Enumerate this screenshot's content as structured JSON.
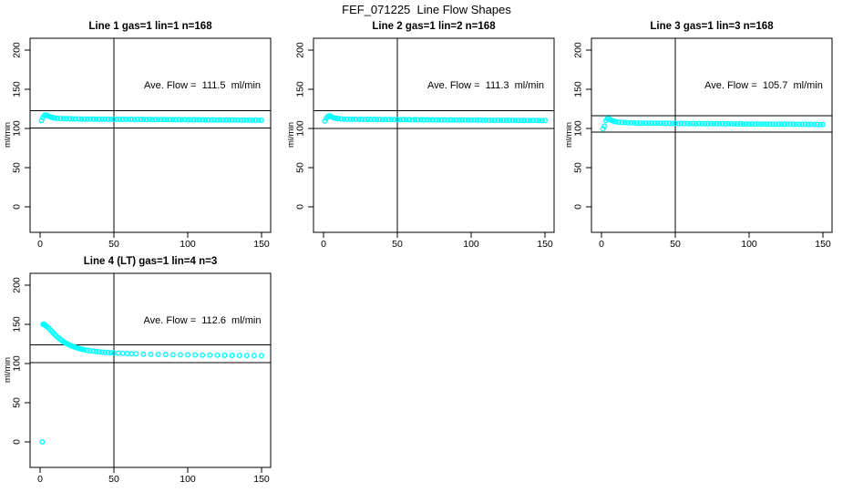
{
  "page": {
    "title": "FEF_071225  Line Flow Shapes",
    "background": "#ffffff"
  },
  "colors": {
    "marker": "#00ffff",
    "axis": "#000000",
    "text": "#000000"
  },
  "chart_data": [
    {
      "type": "scatter",
      "title": "Line 1 gas=1 lin=1 n=168",
      "annotation": "Ave. Flow =  111.5  ml/min",
      "ave_flow_ml_min": 111.5,
      "n": 168,
      "xlabel": "",
      "ylabel": "ml/min",
      "xlim": [
        0,
        150
      ],
      "ylim": [
        0,
        200
      ],
      "x_ticks": [
        0,
        50,
        100,
        150
      ],
      "y_ticks": [
        0,
        50,
        100,
        150,
        200
      ],
      "grid": false,
      "vline_x": 50,
      "hlines": [
        122.7,
        100.4
      ],
      "points": [
        [
          1,
          110
        ],
        [
          2,
          114
        ],
        [
          3,
          116.5
        ],
        [
          4,
          117
        ],
        [
          5,
          116.5
        ],
        [
          6,
          115.5
        ],
        [
          7,
          114.8
        ],
        [
          8,
          114.2
        ],
        [
          9,
          113.7
        ],
        [
          10,
          113.3
        ],
        [
          12,
          112.9
        ],
        [
          14,
          112.7
        ],
        [
          16,
          112.5
        ],
        [
          18,
          112.4
        ],
        [
          20,
          112.3
        ],
        [
          22,
          112.3
        ],
        [
          24,
          112.1
        ],
        [
          26,
          112.2
        ],
        [
          28,
          112.0
        ],
        [
          30,
          112.1
        ],
        [
          32,
          111.9
        ],
        [
          34,
          112.1
        ],
        [
          36,
          111.9
        ],
        [
          38,
          112.0
        ],
        [
          40,
          111.8
        ],
        [
          42,
          112.0
        ],
        [
          44,
          111.8
        ],
        [
          46,
          111.9
        ],
        [
          48,
          111.7
        ],
        [
          50,
          111.9
        ],
        [
          52,
          111.7
        ],
        [
          54,
          111.8
        ],
        [
          56,
          111.6
        ],
        [
          58,
          111.8
        ],
        [
          60,
          111.6
        ],
        [
          62,
          111.7
        ],
        [
          64,
          111.5
        ],
        [
          66,
          111.7
        ],
        [
          68,
          111.5
        ],
        [
          70,
          111.6
        ],
        [
          72,
          111.4
        ],
        [
          74,
          111.6
        ],
        [
          76,
          111.4
        ],
        [
          78,
          111.5
        ],
        [
          80,
          111.3
        ],
        [
          82,
          111.5
        ],
        [
          84,
          111.3
        ],
        [
          86,
          111.4
        ],
        [
          88,
          111.2
        ],
        [
          90,
          111.4
        ],
        [
          92,
          111.2
        ],
        [
          94,
          111.3
        ],
        [
          96,
          111.1
        ],
        [
          98,
          111.3
        ],
        [
          100,
          111.1
        ],
        [
          102,
          111.2
        ],
        [
          104,
          111.0
        ],
        [
          106,
          111.2
        ],
        [
          108,
          111.0
        ],
        [
          110,
          111.1
        ],
        [
          112,
          110.9
        ],
        [
          114,
          111.1
        ],
        [
          116,
          110.9
        ],
        [
          118,
          111.0
        ],
        [
          120,
          110.8
        ],
        [
          122,
          111.0
        ],
        [
          124,
          110.8
        ],
        [
          126,
          110.9
        ],
        [
          128,
          110.7
        ],
        [
          130,
          110.9
        ],
        [
          132,
          110.7
        ],
        [
          134,
          110.8
        ],
        [
          136,
          110.6
        ],
        [
          138,
          110.8
        ],
        [
          140,
          110.6
        ],
        [
          142,
          110.7
        ],
        [
          144,
          110.5
        ],
        [
          146,
          110.7
        ],
        [
          148,
          110.5
        ],
        [
          150,
          110.6
        ]
      ]
    },
    {
      "type": "scatter",
      "title": "Line 2 gas=1 lin=2 n=168",
      "annotation": "Ave. Flow =  111.3  ml/min",
      "ave_flow_ml_min": 111.3,
      "n": 168,
      "xlabel": "",
      "ylabel": "ml/min",
      "xlim": [
        0,
        150
      ],
      "ylim": [
        0,
        200
      ],
      "x_ticks": [
        0,
        50,
        100,
        150
      ],
      "y_ticks": [
        0,
        50,
        100,
        150,
        200
      ],
      "grid": false,
      "vline_x": 50,
      "hlines": [
        122.4,
        100.2
      ],
      "points": [
        [
          1,
          109.5
        ],
        [
          2,
          113
        ],
        [
          3,
          115.5
        ],
        [
          4,
          116
        ],
        [
          5,
          115.3
        ],
        [
          6,
          114.4
        ],
        [
          7,
          113.7
        ],
        [
          8,
          113.2
        ],
        [
          9,
          112.8
        ],
        [
          10,
          112.5
        ],
        [
          12,
          112.2
        ],
        [
          14,
          112.0
        ],
        [
          16,
          111.9
        ],
        [
          18,
          111.9
        ],
        [
          20,
          111.8
        ],
        [
          22,
          111.8
        ],
        [
          24,
          111.6
        ],
        [
          26,
          111.7
        ],
        [
          28,
          111.5
        ],
        [
          30,
          111.7
        ],
        [
          32,
          111.5
        ],
        [
          34,
          111.6
        ],
        [
          36,
          111.4
        ],
        [
          38,
          111.6
        ],
        [
          40,
          111.4
        ],
        [
          42,
          111.5
        ],
        [
          44,
          111.3
        ],
        [
          46,
          111.5
        ],
        [
          48,
          111.3
        ],
        [
          50,
          111.4
        ],
        [
          52,
          111.2
        ],
        [
          54,
          111.4
        ],
        [
          56,
          111.2
        ],
        [
          58,
          111.3
        ],
        [
          60,
          111.1
        ],
        [
          62,
          111.3
        ],
        [
          64,
          111.1
        ],
        [
          66,
          111.2
        ],
        [
          68,
          111.0
        ],
        [
          70,
          111.2
        ],
        [
          72,
          111.0
        ],
        [
          74,
          111.1
        ],
        [
          76,
          110.9
        ],
        [
          78,
          111.1
        ],
        [
          80,
          110.9
        ],
        [
          82,
          111.0
        ],
        [
          84,
          110.8
        ],
        [
          86,
          111.0
        ],
        [
          88,
          110.8
        ],
        [
          90,
          110.9
        ],
        [
          92,
          110.7
        ],
        [
          94,
          110.9
        ],
        [
          96,
          110.7
        ],
        [
          98,
          110.8
        ],
        [
          100,
          110.6
        ],
        [
          102,
          110.8
        ],
        [
          104,
          110.6
        ],
        [
          106,
          110.7
        ],
        [
          108,
          110.5
        ],
        [
          110,
          110.7
        ],
        [
          112,
          110.5
        ],
        [
          114,
          110.6
        ],
        [
          116,
          110.4
        ],
        [
          118,
          110.6
        ],
        [
          120,
          110.4
        ],
        [
          122,
          110.5
        ],
        [
          124,
          110.3
        ],
        [
          126,
          110.5
        ],
        [
          128,
          110.3
        ],
        [
          130,
          110.4
        ],
        [
          132,
          110.2
        ],
        [
          134,
          110.4
        ],
        [
          136,
          110.2
        ],
        [
          138,
          110.3
        ],
        [
          140,
          110.1
        ],
        [
          142,
          110.3
        ],
        [
          144,
          110.1
        ],
        [
          146,
          110.2
        ],
        [
          148,
          110.0
        ],
        [
          150,
          110.1
        ]
      ]
    },
    {
      "type": "scatter",
      "title": "Line 3 gas=1 lin=3 n=168",
      "annotation": "Ave. Flow =  105.7  ml/min",
      "ave_flow_ml_min": 105.7,
      "n": 168,
      "xlabel": "",
      "ylabel": "ml/min",
      "xlim": [
        0,
        150
      ],
      "ylim": [
        0,
        200
      ],
      "x_ticks": [
        0,
        50,
        100,
        150
      ],
      "y_ticks": [
        0,
        50,
        100,
        150,
        200
      ],
      "grid": false,
      "vline_x": 50,
      "hlines": [
        116.3,
        95.1
      ],
      "points": [
        [
          1,
          99.5
        ],
        [
          2,
          103
        ],
        [
          3,
          110
        ],
        [
          4,
          112.5
        ],
        [
          5,
          112.3
        ],
        [
          6,
          111.2
        ],
        [
          7,
          110.2
        ],
        [
          8,
          109.4
        ],
        [
          9,
          108.8
        ],
        [
          10,
          108.4
        ],
        [
          12,
          108.0
        ],
        [
          14,
          107.7
        ],
        [
          16,
          107.5
        ],
        [
          18,
          107.3
        ],
        [
          20,
          107.2
        ],
        [
          22,
          107.1
        ],
        [
          24,
          106.9
        ],
        [
          26,
          107.0
        ],
        [
          28,
          106.8
        ],
        [
          30,
          106.9
        ],
        [
          32,
          106.7
        ],
        [
          34,
          106.8
        ],
        [
          36,
          106.6
        ],
        [
          38,
          106.8
        ],
        [
          40,
          106.6
        ],
        [
          42,
          106.7
        ],
        [
          44,
          106.5
        ],
        [
          46,
          106.6
        ],
        [
          48,
          106.4
        ],
        [
          50,
          106.5
        ],
        [
          52,
          106.3
        ],
        [
          54,
          106.5
        ],
        [
          56,
          106.3
        ],
        [
          58,
          106.4
        ],
        [
          60,
          106.2
        ],
        [
          62,
          106.3
        ],
        [
          64,
          106.1
        ],
        [
          66,
          106.3
        ],
        [
          68,
          106.1
        ],
        [
          70,
          106.2
        ],
        [
          72,
          106.0
        ],
        [
          74,
          106.1
        ],
        [
          76,
          105.9
        ],
        [
          78,
          106.1
        ],
        [
          80,
          105.9
        ],
        [
          82,
          106.0
        ],
        [
          84,
          105.8
        ],
        [
          86,
          106.0
        ],
        [
          88,
          105.8
        ],
        [
          90,
          105.9
        ],
        [
          92,
          105.7
        ],
        [
          94,
          105.9
        ],
        [
          96,
          105.7
        ],
        [
          98,
          105.8
        ],
        [
          100,
          105.6
        ],
        [
          102,
          105.8
        ],
        [
          104,
          105.6
        ],
        [
          106,
          105.7
        ],
        [
          108,
          105.5
        ],
        [
          110,
          105.7
        ],
        [
          112,
          105.5
        ],
        [
          114,
          105.6
        ],
        [
          116,
          105.4
        ],
        [
          118,
          105.6
        ],
        [
          120,
          105.4
        ],
        [
          122,
          105.5
        ],
        [
          124,
          105.3
        ],
        [
          126,
          105.5
        ],
        [
          128,
          105.3
        ],
        [
          130,
          105.4
        ],
        [
          132,
          105.2
        ],
        [
          134,
          105.4
        ],
        [
          136,
          105.2
        ],
        [
          138,
          105.3
        ],
        [
          140,
          105.1
        ],
        [
          142,
          105.3
        ],
        [
          144,
          105.1
        ],
        [
          146,
          105.2
        ],
        [
          148,
          105.0
        ],
        [
          150,
          105.1
        ]
      ]
    },
    {
      "type": "scatter",
      "title": "Line 4 (LT) gas=1 lin=4 n=3",
      "annotation": "Ave. Flow =  112.6  ml/min",
      "ave_flow_ml_min": 112.6,
      "n": 3,
      "xlabel": "",
      "ylabel": "ml/min",
      "xlim": [
        0,
        150
      ],
      "ylim": [
        0,
        200
      ],
      "grid": false,
      "vline_x": 50,
      "hlines": [
        123.9,
        101.3
      ],
      "x_ticks": [
        0,
        50,
        100,
        150
      ],
      "y_ticks": [
        0,
        50,
        100,
        150,
        200
      ],
      "points": [
        [
          1.5,
          0
        ],
        [
          2,
          150
        ],
        [
          2.5,
          150.5
        ],
        [
          3,
          149.5
        ],
        [
          3.5,
          149
        ],
        [
          4,
          148
        ],
        [
          5,
          146.5
        ],
        [
          6,
          145
        ],
        [
          7,
          143
        ],
        [
          8,
          141
        ],
        [
          9,
          139
        ],
        [
          10,
          137
        ],
        [
          11,
          135
        ],
        [
          12,
          133.5
        ],
        [
          13,
          132
        ],
        [
          14,
          130.5
        ],
        [
          15,
          129
        ],
        [
          16,
          127.5
        ],
        [
          17,
          126.5
        ],
        [
          18,
          125.5
        ],
        [
          19,
          124.5
        ],
        [
          20,
          123.5
        ],
        [
          21,
          122.7
        ],
        [
          22,
          122
        ],
        [
          23,
          121.3
        ],
        [
          24,
          120.6
        ],
        [
          25,
          120
        ],
        [
          26,
          119.4
        ],
        [
          27,
          118.9
        ],
        [
          28,
          118.4
        ],
        [
          29,
          118
        ],
        [
          30,
          117.6
        ],
        [
          32,
          116.9
        ],
        [
          34,
          116.3
        ],
        [
          36,
          115.8
        ],
        [
          38,
          115.3
        ],
        [
          40,
          114.9
        ],
        [
          42,
          114.6
        ],
        [
          44,
          114.3
        ],
        [
          46,
          114
        ],
        [
          48,
          113.8
        ],
        [
          50,
          113.5
        ],
        [
          53,
          113.2
        ],
        [
          56,
          112.9
        ],
        [
          59,
          112.7
        ],
        [
          62,
          112.5
        ],
        [
          65,
          112.3
        ],
        [
          70,
          112
        ],
        [
          75,
          111.8
        ],
        [
          80,
          111.6
        ],
        [
          85,
          111.4
        ],
        [
          90,
          111.2
        ],
        [
          95,
          111.1
        ],
        [
          100,
          111
        ],
        [
          105,
          110.9
        ],
        [
          110,
          110.8
        ],
        [
          115,
          110.7
        ],
        [
          120,
          110.6
        ],
        [
          125,
          110.5
        ],
        [
          130,
          110.4
        ],
        [
          135,
          110.3
        ],
        [
          140,
          110.2
        ],
        [
          145,
          110.1
        ],
        [
          150,
          110
        ]
      ]
    }
  ]
}
